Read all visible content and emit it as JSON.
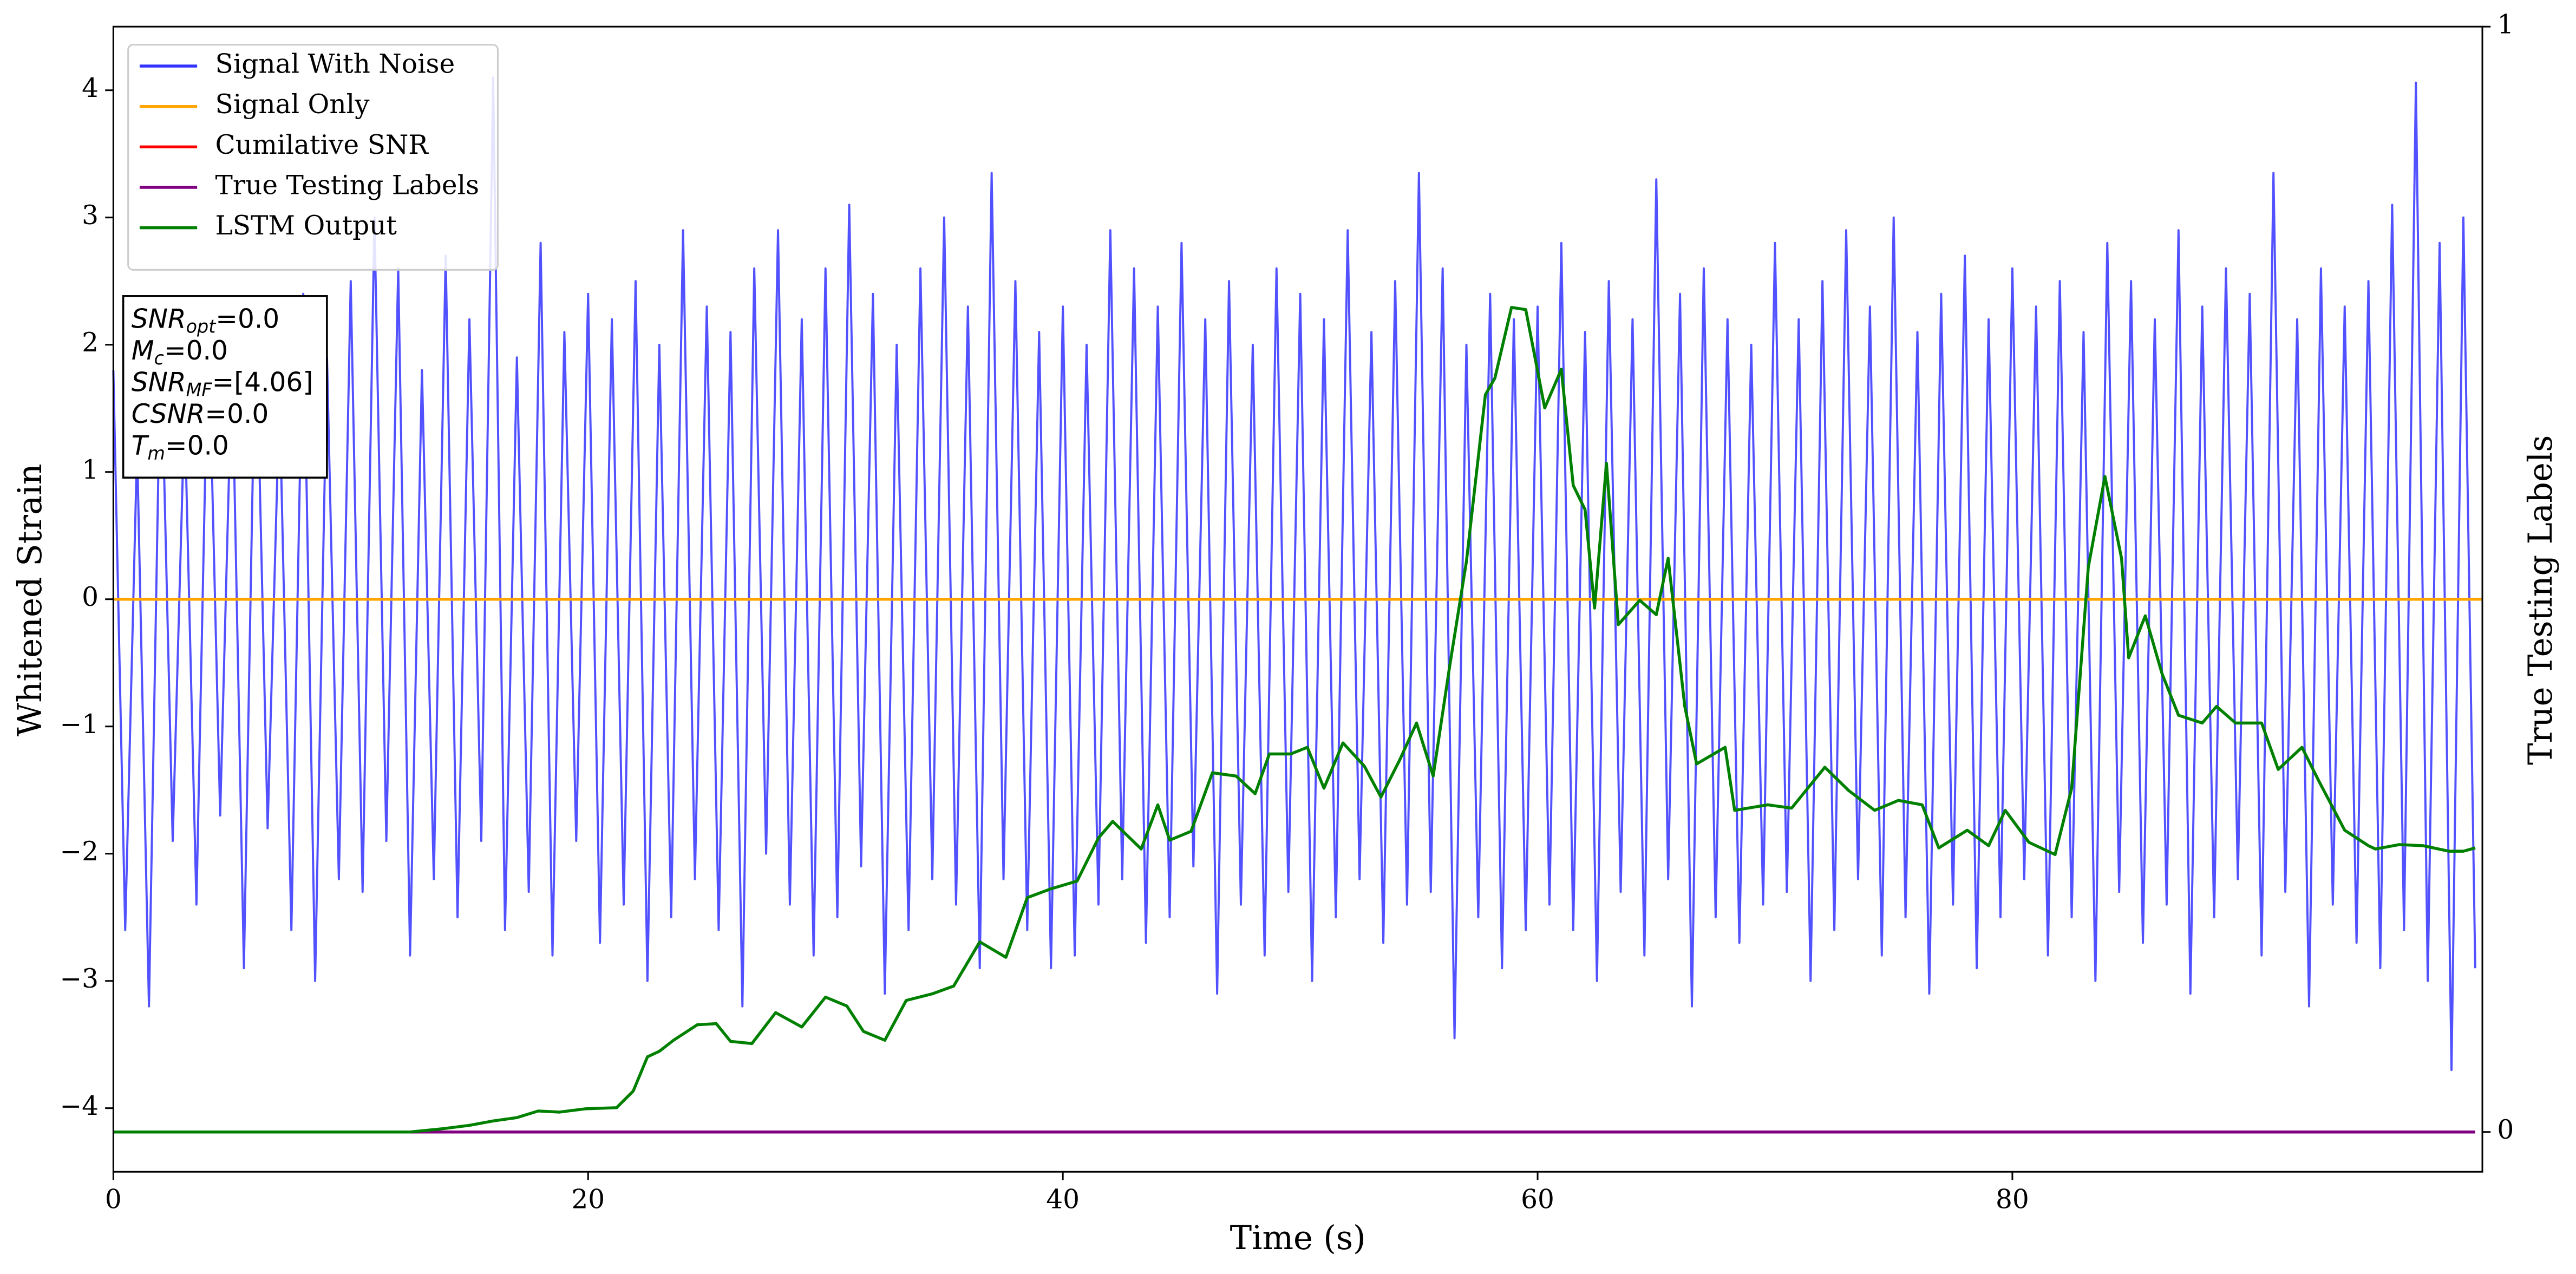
{
  "chart_data": {
    "type": "line",
    "xlabel": "Time (s)",
    "ylabel": "Whitened Strain",
    "y2label": "True Testing Labels",
    "xlim": [
      0,
      99.8
    ],
    "ylim": [
      -4.5,
      4.5
    ],
    "y2lim": [
      -0.036,
      1
    ],
    "xticks": [
      0,
      20,
      40,
      60,
      80
    ],
    "yticks": [
      {
        "value": -4,
        "label": "−4"
      },
      {
        "value": -3,
        "label": "−3"
      },
      {
        "value": -2,
        "label": "−2"
      },
      {
        "value": -1,
        "label": "−1"
      },
      0,
      1,
      2,
      3,
      4
    ],
    "y2ticks": [
      0,
      1
    ],
    "legend": "upper left",
    "annotation": [
      {
        "symbol": "SNR",
        "subscript": "opt",
        "text": "=0.0"
      },
      {
        "symbol": "M",
        "subscript": "c",
        "text": "=0.0"
      },
      {
        "symbol": "SNR",
        "subscript": "MF",
        "text": "=[4.06]"
      },
      {
        "symbol": "CSNR",
        "subscript": null,
        "text": "=0.0"
      },
      {
        "symbol": "T",
        "subscript": "m",
        "text": "=0.0"
      }
    ],
    "series": [
      {
        "name": "Signal With Noise",
        "color": "#3333ff",
        "axis": "y",
        "x": [
          0,
          0.5,
          1,
          1.5,
          2,
          2.5,
          3,
          3.5,
          4,
          4.5,
          5,
          5.5,
          6,
          6.5,
          7,
          7.5,
          8,
          8.5,
          9,
          9.5,
          10,
          10.5,
          11,
          11.5,
          12,
          12.5,
          13,
          13.5,
          14,
          14.5,
          15,
          15.5,
          16,
          16.5,
          17,
          17.5,
          18,
          18.5,
          19,
          19.5,
          20,
          20.5,
          21,
          21.5,
          22,
          22.5,
          23,
          23.5,
          24,
          24.5,
          25,
          25.5,
          26,
          26.5,
          27,
          27.5,
          28,
          28.5,
          29,
          29.5,
          30,
          30.5,
          31,
          31.5,
          32,
          32.5,
          33,
          33.5,
          34,
          34.5,
          35,
          35.5,
          36,
          36.5,
          37,
          37.5,
          38,
          38.5,
          39,
          39.5,
          40,
          40.5,
          41,
          41.5,
          42,
          42.5,
          43,
          43.5,
          44,
          44.5,
          45,
          45.5,
          46,
          46.5,
          47,
          47.5,
          48,
          48.5,
          49,
          49.5,
          50,
          50.5,
          51,
          51.5,
          52,
          52.5,
          53,
          53.5,
          54,
          54.5,
          55,
          55.5,
          56,
          56.5,
          57,
          57.5,
          58,
          58.5,
          59,
          59.5,
          60,
          60.5,
          61,
          61.5,
          62,
          62.5,
          63,
          63.5,
          64,
          64.5,
          65,
          65.5,
          66,
          66.5,
          67,
          67.5,
          68,
          68.5,
          69,
          69.5,
          70,
          70.5,
          71,
          71.5,
          72,
          72.5,
          73,
          73.5,
          74,
          74.5,
          75,
          75.5,
          76,
          76.5,
          77,
          77.5,
          78,
          78.5,
          79,
          79.5,
          80,
          80.5,
          81,
          81.5,
          82,
          82.5,
          83,
          83.5,
          84,
          84.5,
          85,
          85.5,
          86,
          86.5,
          87,
          87.5,
          88,
          88.5,
          89,
          89.5,
          90,
          90.5,
          91,
          91.5,
          92,
          92.5,
          93,
          93.5,
          94,
          94.5,
          95,
          95.5,
          96,
          96.5,
          97,
          97.5,
          98,
          98.5,
          99,
          99.5
        ],
        "values": [
          1.8,
          -2.6,
          1.2,
          -3.2,
          2.1,
          -1.9,
          1.5,
          -2.4,
          2.2,
          -1.7,
          1.9,
          -2.9,
          2.3,
          -1.8,
          1.6,
          -2.6,
          2.4,
          -3.0,
          1.9,
          -2.2,
          2.5,
          -2.3,
          3.0,
          -1.9,
          2.6,
          -2.8,
          1.8,
          -2.2,
          2.7,
          -2.5,
          2.2,
          -1.9,
          4.1,
          -2.6,
          1.9,
          -2.3,
          2.8,
          -2.8,
          2.1,
          -1.9,
          2.4,
          -2.7,
          2.2,
          -2.4,
          2.5,
          -3.0,
          2.0,
          -2.5,
          2.9,
          -2.2,
          2.3,
          -2.6,
          2.1,
          -3.2,
          2.6,
          -2.0,
          2.9,
          -2.4,
          2.2,
          -2.8,
          2.6,
          -2.5,
          3.1,
          -2.1,
          2.4,
          -3.1,
          2.0,
          -2.6,
          2.6,
          -2.2,
          3.0,
          -2.4,
          2.3,
          -2.9,
          3.35,
          -2.2,
          2.5,
          -2.6,
          2.1,
          -2.9,
          2.3,
          -2.8,
          2.0,
          -2.4,
          2.9,
          -2.2,
          2.6,
          -2.7,
          2.3,
          -2.5,
          2.8,
          -2.1,
          2.2,
          -3.1,
          2.5,
          -2.4,
          2.0,
          -2.8,
          2.6,
          -2.3,
          2.4,
          -3.0,
          2.2,
          -2.5,
          2.9,
          -2.2,
          2.1,
          -2.7,
          2.5,
          -2.4,
          3.35,
          -2.3,
          2.6,
          -3.45,
          2.0,
          -2.5,
          2.4,
          -2.9,
          2.2,
          -2.6,
          2.3,
          -2.4,
          2.8,
          -2.6,
          2.1,
          -3.0,
          2.5,
          -2.3,
          2.2,
          -2.8,
          3.3,
          -2.2,
          2.4,
          -3.2,
          2.6,
          -2.5,
          2.2,
          -2.7,
          2.0,
          -2.4,
          2.8,
          -2.3,
          2.2,
          -3.0,
          2.5,
          -2.6,
          2.9,
          -2.2,
          2.3,
          -2.8,
          3.0,
          -2.5,
          2.1,
          -3.1,
          2.4,
          -2.4,
          2.7,
          -2.9,
          2.2,
          -2.5,
          2.6,
          -2.2,
          2.3,
          -2.8,
          2.5,
          -2.5,
          2.1,
          -3.0,
          2.8,
          -2.3,
          2.5,
          -2.7,
          2.2,
          -2.4,
          2.9,
          -3.1,
          2.3,
          -2.5,
          2.6,
          -2.2,
          2.4,
          -2.8,
          3.35,
          -2.3,
          2.2,
          -3.2,
          2.6,
          -2.4,
          2.3,
          -2.7,
          2.5,
          -2.9,
          3.1,
          -2.6,
          4.06,
          -3.0,
          2.8,
          -3.7,
          3.0,
          -2.9
        ]
      },
      {
        "name": "Signal Only",
        "color": "#ffa500",
        "axis": "y",
        "x": [
          0,
          99.8
        ],
        "values": [
          0,
          0
        ]
      },
      {
        "name": "Cumilative SNR",
        "color": "#ff0000",
        "axis": "y",
        "x": [
          0,
          99.8
        ],
        "values": [
          0,
          0
        ]
      },
      {
        "name": "True Testing Labels",
        "color": "#800080",
        "axis": "y2",
        "x": [
          0,
          99.5
        ],
        "values": [
          0,
          0
        ]
      },
      {
        "name": "LSTM Output",
        "color": "#008000",
        "axis": "y2",
        "x": [
          0,
          12.5,
          13.9,
          15.0,
          16.0,
          17.0,
          17.9,
          18.8,
          19.9,
          21.2,
          21.9,
          22.5,
          23.0,
          23.6,
          24.6,
          25.4,
          26.0,
          26.9,
          27.9,
          29.0,
          30.0,
          30.9,
          31.6,
          32.5,
          33.4,
          34.5,
          35.4,
          36.5,
          37.6,
          38.5,
          39.5,
          40.6,
          41.5,
          42.1,
          43.3,
          44.0,
          44.5,
          45.4,
          46.3,
          47.3,
          48.1,
          48.7,
          49.6,
          50.3,
          51.0,
          51.8,
          52.7,
          53.4,
          54.2,
          54.9,
          55.6,
          56.3,
          57.0,
          57.8,
          58.2,
          58.9,
          59.5,
          60.3,
          61.0,
          61.5,
          62.0,
          62.4,
          62.9,
          63.4,
          64.3,
          65.0,
          65.5,
          66.2,
          66.7,
          67.9,
          68.3,
          69.7,
          70.7,
          72.1,
          73.1,
          74.2,
          75.2,
          76.2,
          76.9,
          78.1,
          79.0,
          79.7,
          80.7,
          81.8,
          82.5,
          83.2,
          83.9,
          84.6,
          84.9,
          85.6,
          86.3,
          87.0,
          88.0,
          88.6,
          89.4,
          90.5,
          91.2,
          92.2,
          92.9,
          94.0,
          95.0,
          95.3,
          96.3,
          97.3,
          98.4,
          99.0,
          99.5
        ],
        "values": [
          0,
          0,
          0.003,
          0.006,
          0.01,
          0.013,
          0.019,
          0.018,
          0.021,
          0.022,
          0.037,
          0.068,
          0.073,
          0.083,
          0.097,
          0.098,
          0.082,
          0.08,
          0.108,
          0.095,
          0.122,
          0.114,
          0.091,
          0.083,
          0.119,
          0.125,
          0.132,
          0.172,
          0.158,
          0.212,
          0.22,
          0.227,
          0.266,
          0.281,
          0.256,
          0.296,
          0.264,
          0.272,
          0.325,
          0.322,
          0.306,
          0.342,
          0.342,
          0.348,
          0.311,
          0.352,
          0.331,
          0.303,
          0.337,
          0.37,
          0.322,
          0.422,
          0.516,
          0.667,
          0.682,
          0.746,
          0.744,
          0.655,
          0.69,
          0.585,
          0.563,
          0.474,
          0.605,
          0.459,
          0.481,
          0.468,
          0.519,
          0.385,
          0.333,
          0.348,
          0.291,
          0.296,
          0.293,
          0.33,
          0.309,
          0.291,
          0.3,
          0.296,
          0.257,
          0.273,
          0.259,
          0.291,
          0.262,
          0.251,
          0.311,
          0.511,
          0.593,
          0.519,
          0.429,
          0.467,
          0.415,
          0.377,
          0.37,
          0.385,
          0.37,
          0.37,
          0.328,
          0.348,
          0.318,
          0.273,
          0.259,
          0.256,
          0.26,
          0.259,
          0.254,
          0.254,
          0.257
        ]
      }
    ]
  }
}
